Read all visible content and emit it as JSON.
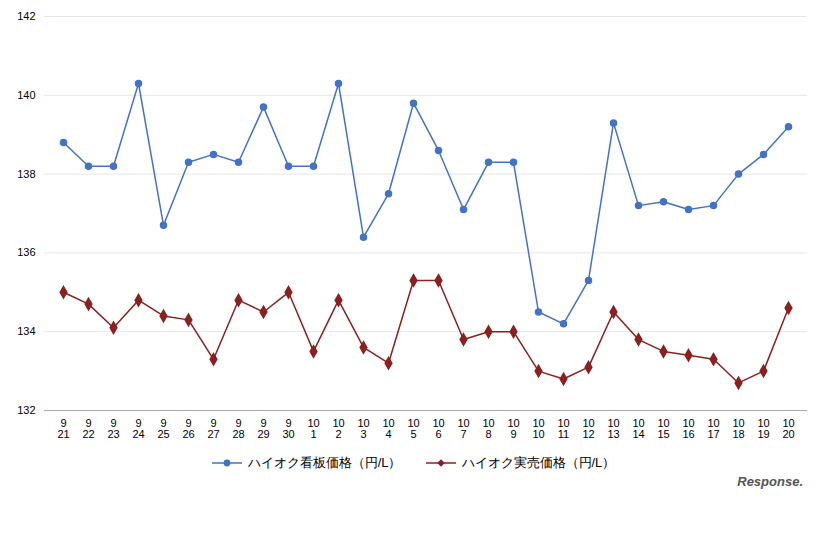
{
  "chart_data": {
    "type": "line",
    "categories": [
      "9\n21",
      "9\n22",
      "9\n23",
      "9\n24",
      "9\n25",
      "9\n26",
      "9\n27",
      "9\n28",
      "9\n29",
      "9\n30",
      "10\n1",
      "10\n2",
      "10\n3",
      "10\n4",
      "10\n5",
      "10\n6",
      "10\n7",
      "10\n8",
      "10\n9",
      "10\n10",
      "10\n11",
      "10\n12",
      "10\n13",
      "10\n14",
      "10\n15",
      "10\n16",
      "10\n17",
      "10\n18",
      "10\n19",
      "10\n20"
    ],
    "series": [
      {
        "name": "ハイオク看板価格（円/L）",
        "color": "#4472C4",
        "marker": "circle",
        "line_style": "solid",
        "values": [
          138.8,
          138.2,
          138.2,
          140.3,
          136.7,
          138.3,
          138.5,
          138.3,
          139.7,
          138.2,
          138.2,
          140.3,
          136.4,
          137.5,
          139.8,
          138.6,
          137.1,
          138.3,
          138.3,
          134.5,
          134.2,
          135.3,
          139.3,
          137.2,
          137.3,
          137.1,
          137.2,
          138.0,
          138.5,
          139.2
        ]
      },
      {
        "name": "ハイオク実売価格（円/L）",
        "color": "#8B2020",
        "marker": "diamond",
        "line_style": "solid",
        "values": [
          135.0,
          134.7,
          134.1,
          134.8,
          134.4,
          134.3,
          133.3,
          134.8,
          134.5,
          135.0,
          133.5,
          134.8,
          133.6,
          133.2,
          135.3,
          135.3,
          133.8,
          134.0,
          134.0,
          133.0,
          132.8,
          133.1,
          134.5,
          133.8,
          133.5,
          133.4,
          133.3,
          132.7,
          133.0,
          134.6
        ]
      }
    ],
    "ylim": [
      132,
      142
    ],
    "yticks": [
      132,
      134,
      136,
      138,
      140,
      142
    ],
    "grid": true,
    "legend": "bottom",
    "annotation": "Response."
  }
}
